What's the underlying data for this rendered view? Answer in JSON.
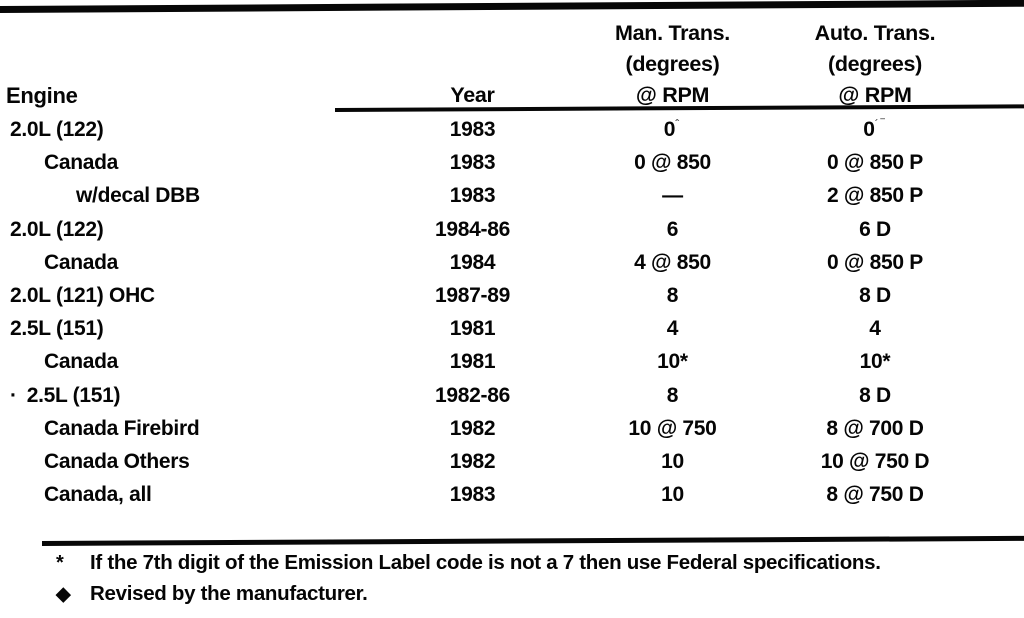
{
  "table": {
    "col_headers": {
      "engine": "Engine",
      "year": "Year",
      "man": [
        "Man. Trans.",
        "(degrees)",
        "@ RPM"
      ],
      "auto": [
        "Auto. Trans.",
        "(degrees)",
        "@ RPM"
      ]
    },
    "rows": [
      {
        "engine": "2.0L (122)",
        "indent": 0,
        "year": "1983",
        "man": "0",
        "man_sup": "ˆ",
        "auto": "0",
        "auto_sup": "´‾"
      },
      {
        "engine": "Canada",
        "indent": 1,
        "year": "1983",
        "man": "0 @ 850",
        "auto": "0 @ 850 P"
      },
      {
        "engine": "w/decal DBB",
        "indent": 2,
        "year": "1983",
        "man": "—",
        "auto": "2 @ 850 P"
      },
      {
        "engine": "2.0L (122)",
        "indent": 0,
        "year": "1984-86",
        "man": "6",
        "auto": "6 D"
      },
      {
        "engine": "Canada",
        "indent": 1,
        "year": "1984",
        "man": "4 @ 850",
        "auto": "0 @ 850 P"
      },
      {
        "engine": "2.0L (121) OHC",
        "indent": 0,
        "year": "1987-89",
        "man": "8",
        "auto": "8 D"
      },
      {
        "engine": "2.5L (151)",
        "indent": 0,
        "year": "1981",
        "man": "4",
        "auto": "4"
      },
      {
        "engine": "Canada",
        "indent": 1,
        "year": "1981",
        "man": "10*",
        "auto": "10*"
      },
      {
        "engine": "2.5L (151)",
        "indent": 0,
        "prefix": "·",
        "year": "1982-86",
        "man": "8",
        "auto": "8 D"
      },
      {
        "engine": "Canada Firebird",
        "indent": 1,
        "year": "1982",
        "man": "10 @ 750",
        "auto": "8 @ 700 D"
      },
      {
        "engine": "Canada Others",
        "indent": 1,
        "year": "1982",
        "man": "10",
        "auto": "10 @ 750 D"
      },
      {
        "engine": "Canada, all",
        "indent": 1,
        "year": "1983",
        "man": "10",
        "auto": "8 @ 750 D"
      }
    ],
    "footnotes": [
      {
        "marker": "*",
        "text": "If the 7th digit of the Emission Label code is not a 7 then use Federal specifications."
      },
      {
        "marker": "◆",
        "text": "Revised by the manufacturer."
      }
    ]
  }
}
